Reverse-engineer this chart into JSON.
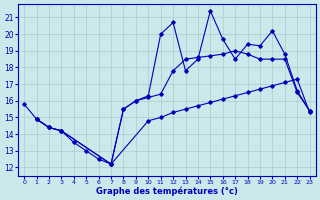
{
  "title": "",
  "xlabel": "Graphe des températures (°c)",
  "ylabel": "",
  "background_color": "#cce8ea",
  "line_color": "#0000bb",
  "grid_color": "#aacccc",
  "xlim": [
    -0.5,
    23.5
  ],
  "ylim": [
    11.5,
    21.8
  ],
  "yticks": [
    12,
    13,
    14,
    15,
    16,
    17,
    18,
    19,
    20,
    21
  ],
  "xticks": [
    0,
    1,
    2,
    3,
    4,
    5,
    6,
    7,
    8,
    9,
    10,
    11,
    12,
    13,
    14,
    15,
    16,
    17,
    18,
    19,
    20,
    21,
    22,
    23
  ],
  "series": [
    {
      "x": [
        1,
        2,
        3,
        7,
        10,
        11,
        12,
        13,
        14,
        15,
        16,
        17,
        18,
        19,
        20,
        21,
        22,
        23
      ],
      "y": [
        14.9,
        14.4,
        14.2,
        12.2,
        14.8,
        15.0,
        15.3,
        15.5,
        15.7,
        15.9,
        16.1,
        16.3,
        16.5,
        16.7,
        16.9,
        17.1,
        17.3,
        15.3
      ]
    },
    {
      "x": [
        1,
        2,
        3,
        7,
        8,
        9,
        10,
        11,
        12,
        13,
        14,
        15,
        16,
        17,
        18,
        19,
        20,
        21,
        22,
        23
      ],
      "y": [
        14.9,
        14.4,
        14.2,
        12.2,
        15.5,
        16.0,
        16.2,
        16.4,
        17.8,
        18.5,
        18.6,
        18.7,
        18.8,
        19.0,
        18.8,
        18.5,
        18.5,
        18.5,
        16.5,
        15.4
      ]
    },
    {
      "x": [
        0,
        1,
        2,
        3,
        4,
        5,
        6,
        7,
        8,
        9,
        10,
        11,
        12,
        13,
        14,
        15,
        16,
        17,
        18,
        19,
        20,
        21,
        22,
        23
      ],
      "y": [
        15.8,
        14.9,
        14.4,
        14.2,
        13.5,
        13.0,
        12.5,
        12.2,
        15.5,
        16.0,
        16.3,
        20.0,
        20.7,
        17.8,
        18.5,
        21.4,
        19.7,
        18.5,
        19.4,
        19.3,
        20.2,
        18.8,
        16.6,
        15.4
      ]
    }
  ]
}
